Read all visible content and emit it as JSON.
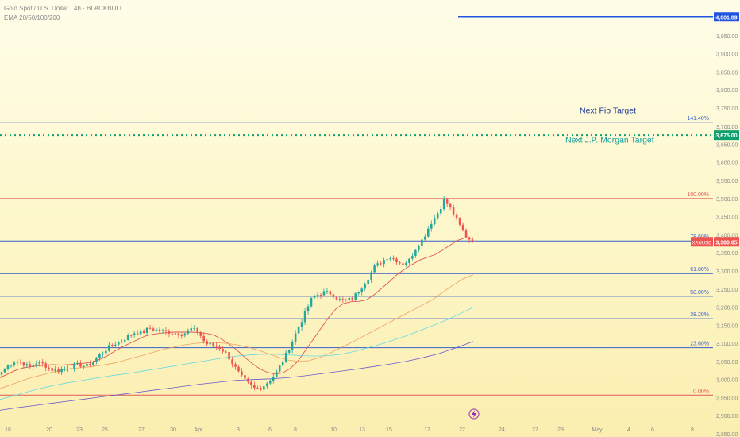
{
  "legend": {
    "symbol_line": "Gold Spot / U.S. Dollar · 4h · BLACKBULL",
    "indicator_line": "EMA 20/50/100/200"
  },
  "colors": {
    "background": "#fdf6c8",
    "up_candle": "#26a69a",
    "down_candle": "#ef5350",
    "fib_line": "#3a5fcd",
    "red_line": "#e05a5a",
    "ema20": "#e05555",
    "ema50": "#f0a060",
    "ema100": "#66d9e0",
    "ema200": "#6a5acd",
    "target_line": "#2155e0",
    "jp_line": "#0e9f6e",
    "axis_text": "#8a8a8a"
  },
  "chart_data": {
    "type": "candlestick",
    "x_labels": [
      "18",
      "20",
      "23",
      "25",
      "27",
      "30",
      "Apr",
      "3",
      "6",
      "8",
      "10",
      "13",
      "15",
      "17",
      "22",
      "24",
      "27",
      "29",
      "May",
      "4",
      "6",
      "8"
    ],
    "y_ticks": [
      2850,
      2900,
      2950,
      3000,
      3050,
      3100,
      3150,
      3200,
      3250,
      3300,
      3350,
      3400,
      3450,
      3500,
      3550,
      3600,
      3650,
      3700,
      3750,
      3800,
      3850,
      3900,
      3950
    ],
    "y_tick_labels": [
      "2,850.00",
      "2,900.00",
      "2,950.00",
      "3,000.00",
      "3,050.00",
      "3,100.00",
      "3,150.00",
      "3,200.00",
      "3,250.00",
      "3,300.00",
      "3,350.00",
      "3,400.00",
      "3,450.00",
      "3,500.00",
      "3,550.00",
      "3,600.00",
      "3,650.00",
      "3,700.00",
      "3,750.00",
      "3,800.00",
      "3,850.00",
      "3,900.00",
      "3,950.00"
    ],
    "ylim": [
      2850,
      4020
    ],
    "price_path": [
      3020,
      3040,
      3052,
      3045,
      3033,
      3047,
      3042,
      3028,
      3024,
      3030,
      3037,
      3041,
      3036,
      3050,
      3069,
      3086,
      3098,
      3106,
      3120,
      3131,
      3129,
      3142,
      3137,
      3133,
      3131,
      3127,
      3127,
      3140,
      3132,
      3099,
      3095,
      3088,
      3072,
      3040,
      3010,
      2990,
      2975,
      2978,
      2995,
      3016,
      3050,
      3090,
      3135,
      3175,
      3220,
      3235,
      3241,
      3237,
      3220,
      3218,
      3225,
      3250,
      3275,
      3310,
      3324,
      3340,
      3332,
      3318,
      3330,
      3365,
      3390,
      3430,
      3458,
      3496,
      3470,
      3432,
      3398,
      3381
    ],
    "candle_path_end": "22",
    "ema_series": [
      {
        "key": "ema20",
        "values": [
          3005,
          3015,
          3025,
          3032,
          3035,
          3038,
          3040,
          3041,
          3040,
          3041,
          3043,
          3045,
          3048,
          3055,
          3065,
          3078,
          3090,
          3100,
          3110,
          3120,
          3125,
          3128,
          3130,
          3131,
          3131,
          3131,
          3130,
          3128,
          3123,
          3112,
          3098,
          3082,
          3063,
          3045,
          3030,
          3020,
          3015,
          3018,
          3030,
          3050,
          3080,
          3110,
          3140,
          3170,
          3195,
          3210,
          3215,
          3216,
          3220,
          3234,
          3252,
          3270,
          3290,
          3305,
          3318,
          3330,
          3338,
          3345,
          3358,
          3372,
          3385,
          3392,
          3390
        ]
      },
      {
        "key": "ema50",
        "values": [
          2975,
          2985,
          2995,
          3005,
          3012,
          3020,
          3026,
          3030,
          3033,
          3036,
          3040,
          3045,
          3052,
          3060,
          3068,
          3076,
          3084,
          3090,
          3096,
          3100,
          3102,
          3102,
          3100,
          3096,
          3090,
          3082,
          3072,
          3062,
          3054,
          3050,
          3052,
          3060,
          3072,
          3086,
          3100,
          3115,
          3130,
          3145,
          3160,
          3175,
          3190,
          3205,
          3220,
          3240,
          3260,
          3278,
          3290
        ]
      },
      {
        "key": "ema100",
        "values": [
          2945,
          2955,
          2965,
          2975,
          2983,
          2990,
          2996,
          3002,
          3008,
          3013,
          3018,
          3024,
          3030,
          3036,
          3042,
          3048,
          3054,
          3060,
          3065,
          3068,
          3070,
          3070,
          3068,
          3066,
          3065,
          3066,
          3070,
          3078,
          3088,
          3098,
          3110,
          3122,
          3136,
          3150,
          3165,
          3182,
          3200
        ]
      },
      {
        "key": "ema200",
        "values": [
          2915,
          2922,
          2928,
          2934,
          2940,
          2946,
          2952,
          2958,
          2964,
          2970,
          2976,
          2982,
          2988,
          2993,
          2998,
          3000,
          3002,
          3005,
          3010,
          3016,
          3022,
          3028,
          3035,
          3042,
          3050,
          3060,
          3072,
          3088,
          3105
        ]
      }
    ],
    "fib_levels": [
      {
        "label": "141.40%",
        "price": 3711,
        "color": "#3a5fcd"
      },
      {
        "label": "100.00%",
        "price": 3500,
        "color": "#e05a5a"
      },
      {
        "label": "78.60%",
        "price": 3383,
        "color": "#3a5fcd"
      },
      {
        "label": "61.80%",
        "price": 3293,
        "color": "#3a5fcd"
      },
      {
        "label": "50.00%",
        "price": 3230,
        "color": "#3a5fcd"
      },
      {
        "label": "38.20%",
        "price": 3168,
        "color": "#3a5fcd"
      },
      {
        "label": "23.60%",
        "price": 3088,
        "color": "#3a5fcd"
      },
      {
        "label": "0.00%",
        "price": 2957,
        "color": "#e05a5a"
      }
    ],
    "annotations": [
      {
        "text": "Next Fib Target",
        "price": 3736,
        "color": "#1f3a93"
      },
      {
        "text": "Next J.P. Morgan Target",
        "price": 3655,
        "color": "#0e9f9a"
      }
    ],
    "target_line": {
      "price": 4001.89,
      "label": "4,001.89"
    },
    "jp_target": {
      "price": 3675,
      "label": "3,675.00"
    },
    "current_price": {
      "symbol": "XAUUSD",
      "price": 3380.65,
      "label": "3,380.65"
    }
  }
}
